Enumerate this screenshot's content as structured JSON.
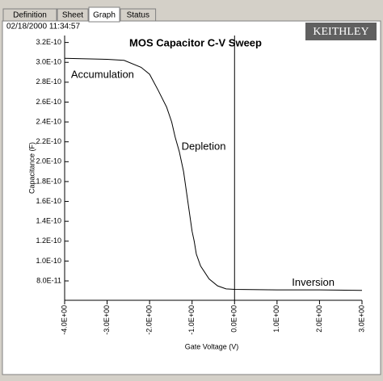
{
  "ui": {
    "tabs": [
      "Definition",
      "Sheet",
      "Graph",
      "Status"
    ],
    "active_tab": "Graph",
    "timestamp": "02/18/2000 11:34:57",
    "logo": "KEITHLEY"
  },
  "chart_data": {
    "type": "line",
    "title": "MOS Capacitor C-V Sweep",
    "x_label": "Gate Voltage (V)",
    "y_label": "Capacitance (F)",
    "annotations": [
      {
        "text": "Accumulation",
        "x": -3.85,
        "y": 2.87e-10
      },
      {
        "text": "Depletion",
        "x": -1.25,
        "y": 2.15e-10
      },
      {
        "text": "Inversion",
        "x": 1.35,
        "y": 7.8e-11
      }
    ],
    "x": [
      -4.0,
      -3.0,
      -2.6,
      -2.2,
      -2.0,
      -1.8,
      -1.6,
      -1.48,
      -1.4,
      -1.3,
      -1.2,
      -1.1,
      -1.0,
      -0.95,
      -0.9,
      -0.8,
      -0.6,
      -0.4,
      -0.2,
      0.0,
      1.0,
      2.0,
      3.0
    ],
    "series": [
      {
        "name": "C",
        "color": "#000000",
        "values": [
          3.04e-10,
          3.03e-10,
          3.02e-10,
          2.95e-10,
          2.88e-10,
          2.72e-10,
          2.55e-10,
          2.4e-10,
          2.25e-10,
          2.1e-10,
          1.9e-10,
          1.6e-10,
          1.3e-10,
          1.2e-10,
          1.07e-10,
          9.5e-11,
          8.2e-11,
          7.5e-11,
          7.2e-11,
          7.15e-11,
          7.1e-11,
          7.1e-11,
          7.05e-11
        ]
      }
    ],
    "xlim": [
      -4.0,
      3.0
    ],
    "ylim": [
      6.05e-11,
      3.27e-10
    ],
    "xticks": [
      {
        "value": -4.0,
        "label": "-4.0E+00"
      },
      {
        "value": -3.0,
        "label": "-3.0E+00"
      },
      {
        "value": -2.0,
        "label": "-2.0E+00"
      },
      {
        "value": -1.0,
        "label": "-1.0E+00"
      },
      {
        "value": 0.0,
        "label": "0.0E+00"
      },
      {
        "value": 1.0,
        "label": "1.0E+00"
      },
      {
        "value": 2.0,
        "label": "2.0E+00"
      },
      {
        "value": 3.0,
        "label": "3.0E+00"
      }
    ],
    "yticks": [
      {
        "value": 3.2e-10,
        "label": "3.2E-10"
      },
      {
        "value": 3e-10,
        "label": "3.0E-10"
      },
      {
        "value": 2.8e-10,
        "label": "2.8E-10"
      },
      {
        "value": 2.6e-10,
        "label": "2.6E-10"
      },
      {
        "value": 2.4e-10,
        "label": "2.4E-10"
      },
      {
        "value": 2.2e-10,
        "label": "2.2E-10"
      },
      {
        "value": 2e-10,
        "label": "2.0E-10"
      },
      {
        "value": 1.8e-10,
        "label": "1.8E-10"
      },
      {
        "value": 1.6e-10,
        "label": "1.6E-10"
      },
      {
        "value": 1.4e-10,
        "label": "1.4E-10"
      },
      {
        "value": 1.2e-10,
        "label": "1.2E-10"
      },
      {
        "value": 1e-10,
        "label": "1.0E-10"
      },
      {
        "value": 8e-11,
        "label": "8.0E-11"
      }
    ],
    "grid": false
  }
}
